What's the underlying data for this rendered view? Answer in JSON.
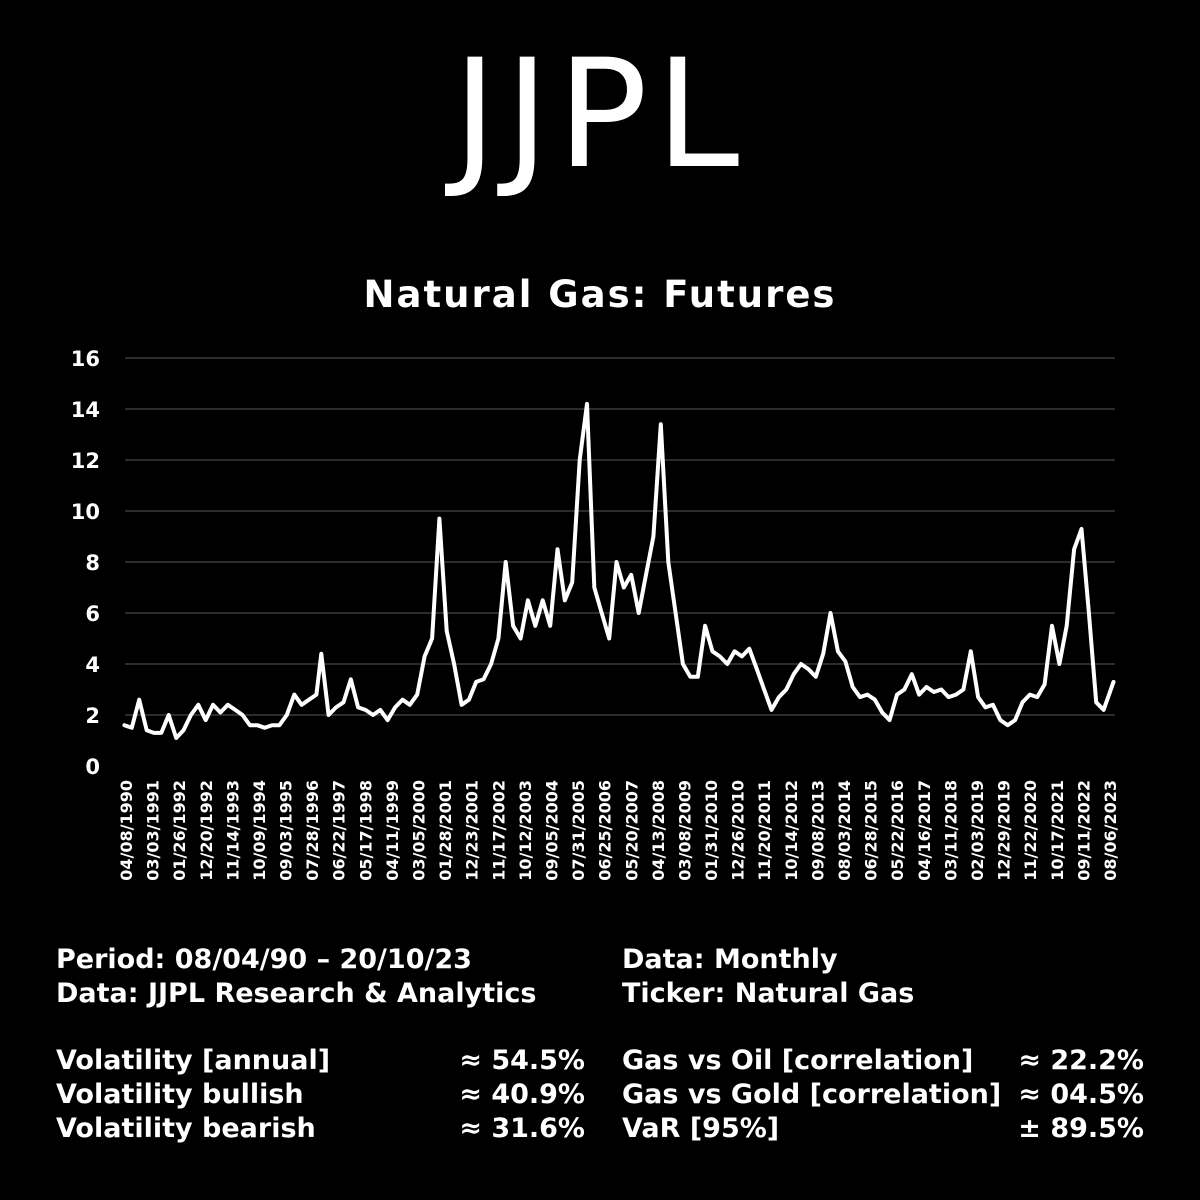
{
  "brand": "JJPL",
  "chart_data": {
    "type": "line",
    "title": "Natural Gas: Futures",
    "xlabel": "",
    "ylabel": "",
    "ylim": [
      0,
      16
    ],
    "yticks": [
      0,
      2,
      4,
      6,
      8,
      10,
      12,
      14,
      16
    ],
    "xlim": [
      "1990-04-08",
      "2023-10-20"
    ],
    "grid": "horizontal",
    "xtick_labels": [
      "04/08/1990",
      "03/03/1991",
      "01/26/1992",
      "12/20/1992",
      "11/14/1993",
      "10/09/1994",
      "09/03/1995",
      "07/28/1996",
      "06/22/1997",
      "05/17/1998",
      "04/11/1999",
      "03/05/2000",
      "01/28/2001",
      "12/23/2001",
      "11/17/2002",
      "10/12/2003",
      "09/05/2004",
      "07/31/2005",
      "06/25/2006",
      "05/20/2007",
      "04/13/2008",
      "03/08/2009",
      "01/31/2010",
      "12/26/2010",
      "11/20/2011",
      "10/14/2012",
      "09/08/2013",
      "08/03/2014",
      "06/28/2015",
      "05/22/2016",
      "04/16/2017",
      "03/11/2018",
      "02/03/2019",
      "12/29/2019",
      "11/22/2020",
      "10/17/2021",
      "09/11/2022",
      "08/06/2023"
    ],
    "series": [
      {
        "x": [
          "1990-04",
          "1990-07",
          "1990-10",
          "1991-01",
          "1991-04",
          "1991-07",
          "1991-10",
          "1992-01",
          "1992-04",
          "1992-07",
          "1992-10",
          "1993-01",
          "1993-04",
          "1993-07",
          "1993-10",
          "1994-01",
          "1994-04",
          "1994-07",
          "1994-10",
          "1995-01",
          "1995-04",
          "1995-07",
          "1995-10",
          "1996-01",
          "1996-04",
          "1996-07",
          "1996-10",
          "1996-12",
          "1997-03",
          "1997-06",
          "1997-09",
          "1997-12",
          "1998-03",
          "1998-06",
          "1998-09",
          "1998-12",
          "1999-03",
          "1999-06",
          "1999-09",
          "1999-12",
          "2000-03",
          "2000-06",
          "2000-09",
          "2000-12",
          "2001-03",
          "2001-06",
          "2001-09",
          "2001-12",
          "2002-03",
          "2002-06",
          "2002-09",
          "2002-12",
          "2003-03",
          "2003-06",
          "2003-09",
          "2003-12",
          "2004-03",
          "2004-06",
          "2004-09",
          "2004-12",
          "2005-03",
          "2005-06",
          "2005-09",
          "2005-12",
          "2006-03",
          "2006-06",
          "2006-09",
          "2006-12",
          "2007-03",
          "2007-06",
          "2007-09",
          "2007-12",
          "2008-03",
          "2008-06",
          "2008-09",
          "2008-12",
          "2009-03",
          "2009-06",
          "2009-09",
          "2009-12",
          "2010-03",
          "2010-06",
          "2010-09",
          "2010-12",
          "2011-03",
          "2011-06",
          "2011-09",
          "2011-12",
          "2012-03",
          "2012-06",
          "2012-09",
          "2012-12",
          "2013-03",
          "2013-06",
          "2013-09",
          "2013-12",
          "2014-03",
          "2014-06",
          "2014-09",
          "2014-12",
          "2015-03",
          "2015-06",
          "2015-09",
          "2015-12",
          "2016-03",
          "2016-06",
          "2016-09",
          "2016-12",
          "2017-03",
          "2017-06",
          "2017-09",
          "2017-12",
          "2018-03",
          "2018-06",
          "2018-09",
          "2018-12",
          "2019-03",
          "2019-06",
          "2019-09",
          "2019-12",
          "2020-03",
          "2020-06",
          "2020-09",
          "2020-12",
          "2021-03",
          "2021-06",
          "2021-09",
          "2021-12",
          "2022-03",
          "2022-06",
          "2022-09",
          "2022-12",
          "2023-03",
          "2023-06",
          "2023-10"
        ],
        "values": [
          1.6,
          1.5,
          2.6,
          1.4,
          1.3,
          1.3,
          2.0,
          1.1,
          1.4,
          2.0,
          2.4,
          1.8,
          2.4,
          2.1,
          2.4,
          2.2,
          2.0,
          1.6,
          1.6,
          1.5,
          1.6,
          1.6,
          2.0,
          2.8,
          2.4,
          2.6,
          2.8,
          4.4,
          2.0,
          2.3,
          2.5,
          3.4,
          2.3,
          2.2,
          2.0,
          2.2,
          1.8,
          2.3,
          2.6,
          2.4,
          2.8,
          4.3,
          5.0,
          9.7,
          5.3,
          4.0,
          2.4,
          2.6,
          3.3,
          3.4,
          4.0,
          5.0,
          8.0,
          5.5,
          5.0,
          6.5,
          5.5,
          6.5,
          5.5,
          8.5,
          6.5,
          7.2,
          12.0,
          14.2,
          7.0,
          6.0,
          5.0,
          8.0,
          7.0,
          7.5,
          6.0,
          7.5,
          9.0,
          13.4,
          8.0,
          6.0,
          4.0,
          3.5,
          3.5,
          5.5,
          4.5,
          4.3,
          4.0,
          4.5,
          4.3,
          4.6,
          3.8,
          3.0,
          2.2,
          2.7,
          3.0,
          3.6,
          4.0,
          3.8,
          3.5,
          4.4,
          6.0,
          4.5,
          4.1,
          3.1,
          2.7,
          2.8,
          2.6,
          2.1,
          1.8,
          2.8,
          3.0,
          3.6,
          2.8,
          3.1,
          2.9,
          3.0,
          2.7,
          2.8,
          3.0,
          4.5,
          2.7,
          2.3,
          2.4,
          1.8,
          1.6,
          1.8,
          2.5,
          2.8,
          2.7,
          3.2,
          5.5,
          4.0,
          5.5,
          8.5,
          9.3,
          6.0,
          2.5,
          2.2,
          3.3
        ]
      }
    ]
  },
  "info": {
    "period": "Period: 08/04/90 – 20/10/23",
    "source": "Data: JJPL Research & Analytics",
    "frequency": "Data: Monthly",
    "ticker": "Ticker: Natural Gas"
  },
  "stats_left": [
    {
      "label": "Volatility [annual]",
      "value": "≈ 54.5%"
    },
    {
      "label": "Volatility bullish",
      "value": "≈ 40.9%"
    },
    {
      "label": "Volatility bearish",
      "value": "≈ 31.6%"
    }
  ],
  "stats_right": [
    {
      "label": "Gas vs Oil [correlation]",
      "value": "≈ 22.2%"
    },
    {
      "label": "Gas vs Gold [correlation]",
      "value": "≈ 04.5%"
    },
    {
      "label": "VaR [95%]",
      "value": "± 89.5%"
    }
  ]
}
